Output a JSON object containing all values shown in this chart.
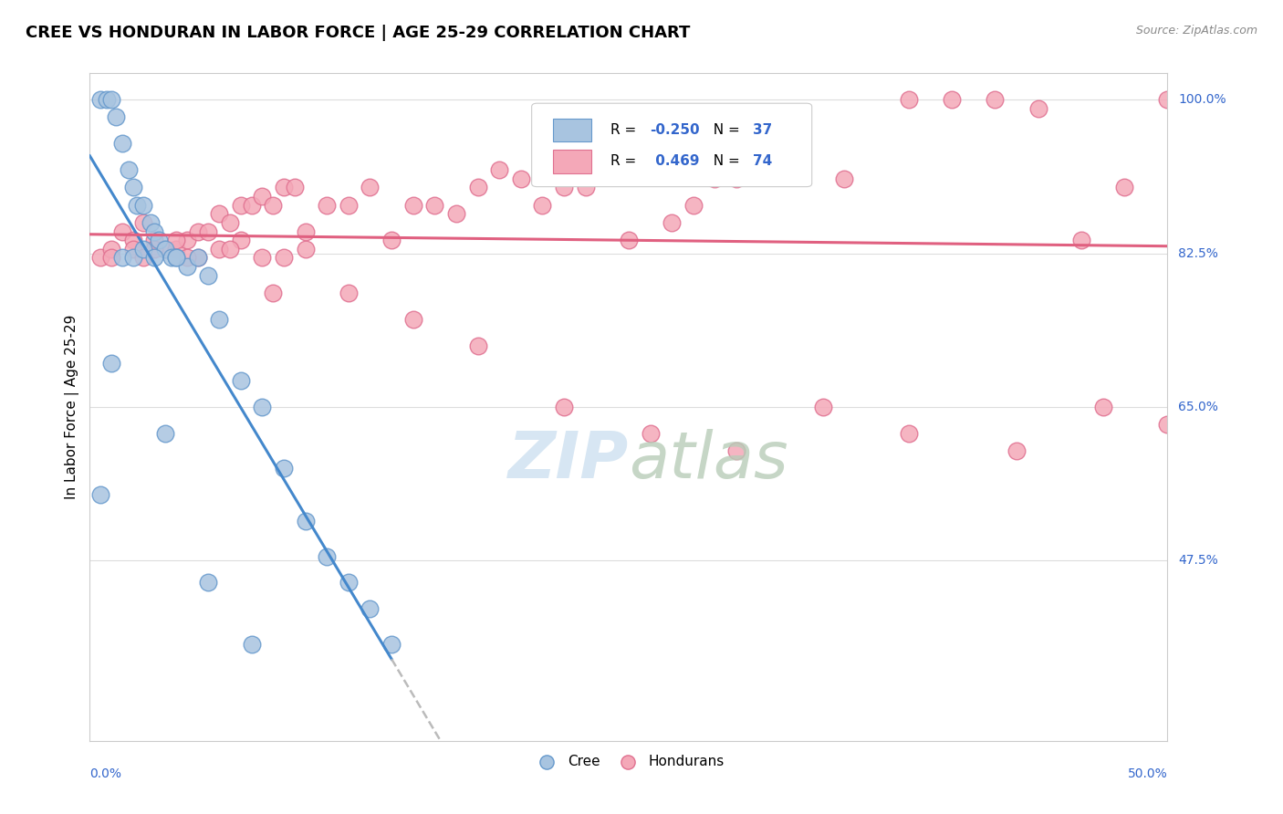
{
  "title": "CREE VS HONDURAN IN LABOR FORCE | AGE 25-29 CORRELATION CHART",
  "source": "Source: ZipAtlas.com",
  "ylabel": "In Labor Force | Age 25-29",
  "R_cree": -0.25,
  "N_cree": 37,
  "R_honduran": 0.469,
  "N_honduran": 74,
  "x_min": 0.0,
  "x_max": 50.0,
  "y_min": 27.0,
  "y_max": 103.0,
  "yticks": [
    47.5,
    65.0,
    82.5,
    100.0
  ],
  "grid_color": "#dddddd",
  "cree_color": "#a8c4e0",
  "honduran_color": "#f4a8b8",
  "cree_edge_color": "#6699cc",
  "honduran_edge_color": "#e07090",
  "trend_cree_color": "#4488cc",
  "trend_honduran_color": "#e06080",
  "dashed_color": "#bbbbbb",
  "blue_label_color": "#3366cc",
  "cree_points_x": [
    0.5,
    0.8,
    1.0,
    1.2,
    1.5,
    1.8,
    2.0,
    2.2,
    2.5,
    2.8,
    3.0,
    3.2,
    3.5,
    3.8,
    4.0,
    4.5,
    5.0,
    5.5,
    6.0,
    7.0,
    8.0,
    9.0,
    10.0,
    11.0,
    12.0,
    13.0,
    14.0,
    0.5,
    1.0,
    1.5,
    2.0,
    2.5,
    3.0,
    3.5,
    4.0,
    5.5,
    7.5
  ],
  "cree_points_y": [
    100,
    100,
    100,
    98,
    95,
    92,
    90,
    88,
    88,
    86,
    85,
    84,
    83,
    82,
    82,
    81,
    82,
    80,
    75,
    68,
    65,
    58,
    52,
    48,
    45,
    42,
    38,
    55,
    70,
    82,
    82,
    83,
    82,
    62,
    82,
    45,
    38
  ],
  "honduran_points_x": [
    0.5,
    1.0,
    1.5,
    2.0,
    2.5,
    3.0,
    3.5,
    4.0,
    4.5,
    5.0,
    5.5,
    6.0,
    6.5,
    7.0,
    7.5,
    8.0,
    8.5,
    9.0,
    9.5,
    10.0,
    11.0,
    12.0,
    13.0,
    14.0,
    15.0,
    16.0,
    17.0,
    18.0,
    19.0,
    20.0,
    21.0,
    22.0,
    23.0,
    24.0,
    25.0,
    26.0,
    27.0,
    28.0,
    29.0,
    30.0,
    32.0,
    35.0,
    38.0,
    40.0,
    42.0,
    44.0,
    46.0,
    48.0,
    50.0,
    1.0,
    2.0,
    3.0,
    4.0,
    5.0,
    6.0,
    7.0,
    8.0,
    9.0,
    10.0,
    12.0,
    15.0,
    18.0,
    22.0,
    26.0,
    30.0,
    34.0,
    38.0,
    43.0,
    47.0,
    50.0,
    2.5,
    4.5,
    6.5,
    8.5
  ],
  "honduran_points_y": [
    82,
    83,
    85,
    84,
    86,
    84,
    83,
    83,
    84,
    85,
    85,
    87,
    86,
    88,
    88,
    89,
    88,
    90,
    90,
    83,
    88,
    88,
    90,
    84,
    88,
    88,
    87,
    90,
    92,
    91,
    88,
    90,
    90,
    92,
    84,
    93,
    86,
    88,
    91,
    91,
    92,
    91,
    100,
    100,
    100,
    99,
    84,
    90,
    100,
    82,
    83,
    83,
    84,
    82,
    83,
    84,
    82,
    82,
    85,
    78,
    75,
    72,
    65,
    62,
    60,
    65,
    62,
    60,
    65,
    63,
    82,
    82,
    83,
    78
  ]
}
